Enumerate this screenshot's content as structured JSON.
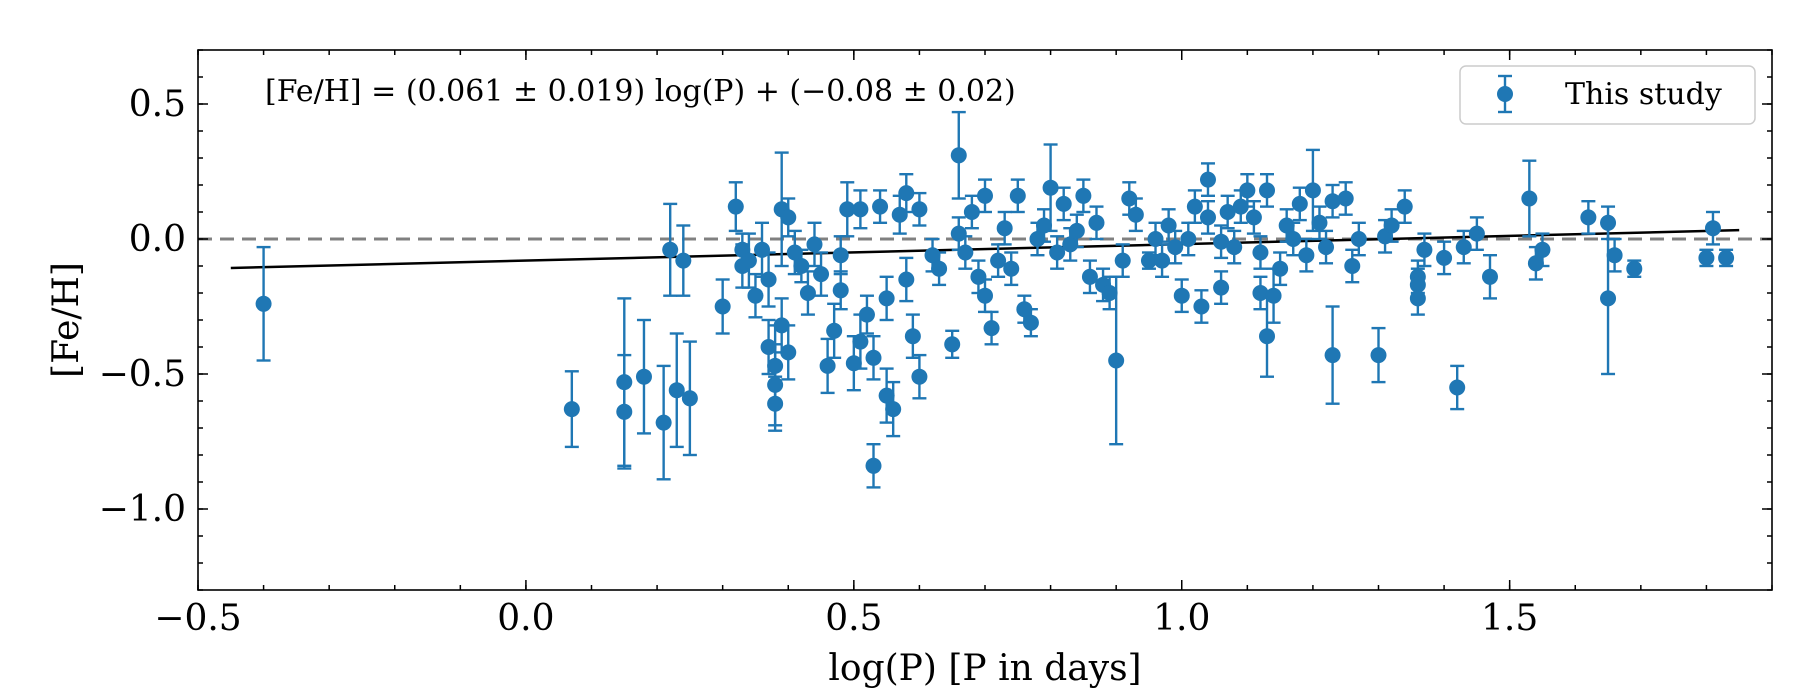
{
  "chart_data": {
    "type": "scatter",
    "title": "",
    "xlabel": "log(P) [P in days]",
    "ylabel": "[Fe/H]",
    "xlim": [
      -0.5,
      1.9
    ],
    "ylim": [
      -1.3,
      0.7
    ],
    "xticks": [
      -0.5,
      0.0,
      0.5,
      1.0,
      1.5
    ],
    "xtick_labels": [
      "−0.5",
      "0.0",
      "0.5",
      "1.0",
      "1.5"
    ],
    "yticks": [
      0.5,
      0.0,
      -0.5,
      -1.0
    ],
    "ytick_labels": [
      "0.5",
      "0.0",
      "−0.5",
      "−1.0"
    ],
    "grid": false,
    "annotation": "[Fe/H] = (0.061 ± 0.019) log(P) + (−0.08 ± 0.02)",
    "legend": {
      "label": "This study",
      "position": "top-right"
    },
    "fit_line": {
      "slope": 0.061,
      "intercept": -0.08,
      "x_start": -0.45,
      "x_end": 1.85,
      "color": "#000000"
    },
    "reference_line": {
      "y": 0.0,
      "style": "dashed",
      "color": "#808080"
    },
    "series": [
      {
        "name": "This study",
        "color": "#1f77b4",
        "points": [
          [
            -0.4,
            -0.24,
            0.21
          ],
          [
            0.07,
            -0.63,
            0.14
          ],
          [
            0.15,
            -0.53,
            0.31
          ],
          [
            0.15,
            -0.64,
            0.21
          ],
          [
            0.18,
            -0.51,
            0.21
          ],
          [
            0.21,
            -0.68,
            0.21
          ],
          [
            0.22,
            -0.04,
            0.17
          ],
          [
            0.23,
            -0.56,
            0.21
          ],
          [
            0.24,
            -0.08,
            0.13
          ],
          [
            0.25,
            -0.59,
            0.21
          ],
          [
            0.3,
            -0.25,
            0.1
          ],
          [
            0.32,
            0.12,
            0.09
          ],
          [
            0.33,
            -0.1,
            0.08
          ],
          [
            0.33,
            -0.04,
            0.06
          ],
          [
            0.34,
            -0.08,
            0.1
          ],
          [
            0.35,
            -0.21,
            0.08
          ],
          [
            0.36,
            -0.04,
            0.1
          ],
          [
            0.37,
            -0.15,
            0.1
          ],
          [
            0.37,
            -0.4,
            0.1
          ],
          [
            0.38,
            -0.47,
            0.15
          ],
          [
            0.38,
            -0.54,
            0.15
          ],
          [
            0.38,
            -0.61,
            0.1
          ],
          [
            0.39,
            0.11,
            0.21
          ],
          [
            0.39,
            -0.32,
            0.1
          ],
          [
            0.4,
            -0.42,
            0.1
          ],
          [
            0.4,
            0.08,
            0.07
          ],
          [
            0.41,
            -0.05,
            0.08
          ],
          [
            0.42,
            -0.1,
            0.06
          ],
          [
            0.43,
            -0.2,
            0.08
          ],
          [
            0.44,
            -0.02,
            0.08
          ],
          [
            0.45,
            -0.13,
            0.08
          ],
          [
            0.46,
            -0.47,
            0.1
          ],
          [
            0.47,
            -0.34,
            0.1
          ],
          [
            0.48,
            -0.19,
            0.07
          ],
          [
            0.48,
            -0.06,
            0.07
          ],
          [
            0.49,
            0.11,
            0.1
          ],
          [
            0.5,
            -0.46,
            0.1
          ],
          [
            0.51,
            -0.38,
            0.1
          ],
          [
            0.51,
            0.11,
            0.07
          ],
          [
            0.52,
            -0.28,
            0.07
          ],
          [
            0.53,
            -0.44,
            0.08
          ],
          [
            0.53,
            -0.84,
            0.08
          ],
          [
            0.54,
            0.12,
            0.06
          ],
          [
            0.55,
            -0.58,
            0.1
          ],
          [
            0.55,
            -0.22,
            0.08
          ],
          [
            0.56,
            -0.63,
            0.1
          ],
          [
            0.57,
            0.09,
            0.07
          ],
          [
            0.58,
            0.17,
            0.07
          ],
          [
            0.58,
            -0.15,
            0.08
          ],
          [
            0.59,
            -0.36,
            0.08
          ],
          [
            0.6,
            -0.51,
            0.08
          ],
          [
            0.6,
            0.11,
            0.06
          ],
          [
            0.62,
            -0.06,
            0.06
          ],
          [
            0.63,
            -0.11,
            0.06
          ],
          [
            0.65,
            -0.39,
            0.05
          ],
          [
            0.66,
            0.31,
            0.16
          ],
          [
            0.66,
            0.02,
            0.06
          ],
          [
            0.67,
            -0.05,
            0.06
          ],
          [
            0.68,
            0.1,
            0.06
          ],
          [
            0.69,
            -0.14,
            0.06
          ],
          [
            0.7,
            0.16,
            0.06
          ],
          [
            0.7,
            -0.21,
            0.06
          ],
          [
            0.71,
            -0.33,
            0.06
          ],
          [
            0.72,
            -0.08,
            0.06
          ],
          [
            0.73,
            0.04,
            0.06
          ],
          [
            0.74,
            -0.11,
            0.06
          ],
          [
            0.75,
            0.16,
            0.06
          ],
          [
            0.76,
            -0.26,
            0.05
          ],
          [
            0.77,
            -0.31,
            0.05
          ],
          [
            0.78,
            0.0,
            0.06
          ],
          [
            0.79,
            0.05,
            0.06
          ],
          [
            0.8,
            0.19,
            0.16
          ],
          [
            0.81,
            -0.05,
            0.06
          ],
          [
            0.82,
            0.13,
            0.06
          ],
          [
            0.83,
            -0.02,
            0.06
          ],
          [
            0.84,
            0.03,
            0.06
          ],
          [
            0.85,
            0.16,
            0.06
          ],
          [
            0.86,
            -0.14,
            0.06
          ],
          [
            0.87,
            0.06,
            0.06
          ],
          [
            0.88,
            -0.17,
            0.06
          ],
          [
            0.89,
            -0.2,
            0.06
          ],
          [
            0.9,
            -0.45,
            0.31
          ],
          [
            0.91,
            -0.08,
            0.06
          ],
          [
            0.92,
            0.15,
            0.06
          ],
          [
            0.93,
            0.09,
            0.06
          ],
          [
            0.95,
            -0.08,
            0.03
          ],
          [
            0.96,
            0.0,
            0.06
          ],
          [
            0.97,
            -0.08,
            0.06
          ],
          [
            0.98,
            0.05,
            0.06
          ],
          [
            0.99,
            -0.03,
            0.06
          ],
          [
            1.0,
            -0.21,
            0.06
          ],
          [
            1.01,
            0.0,
            0.06
          ],
          [
            1.02,
            0.12,
            0.06
          ],
          [
            1.03,
            -0.25,
            0.06
          ],
          [
            1.04,
            0.08,
            0.06
          ],
          [
            1.04,
            0.22,
            0.06
          ],
          [
            1.06,
            -0.18,
            0.06
          ],
          [
            1.06,
            -0.01,
            0.06
          ],
          [
            1.07,
            0.1,
            0.06
          ],
          [
            1.08,
            -0.03,
            0.06
          ],
          [
            1.09,
            0.12,
            0.06
          ],
          [
            1.1,
            0.18,
            0.06
          ],
          [
            1.11,
            0.08,
            0.06
          ],
          [
            1.12,
            -0.2,
            0.06
          ],
          [
            1.12,
            -0.05,
            0.06
          ],
          [
            1.13,
            0.18,
            0.06
          ],
          [
            1.13,
            -0.36,
            0.15
          ],
          [
            1.14,
            -0.21,
            0.1
          ],
          [
            1.15,
            -0.11,
            0.06
          ],
          [
            1.16,
            0.05,
            0.06
          ],
          [
            1.17,
            0.0,
            0.06
          ],
          [
            1.18,
            0.13,
            0.06
          ],
          [
            1.19,
            -0.06,
            0.06
          ],
          [
            1.2,
            0.18,
            0.15
          ],
          [
            1.21,
            0.06,
            0.06
          ],
          [
            1.22,
            -0.03,
            0.06
          ],
          [
            1.23,
            -0.43,
            0.18
          ],
          [
            1.23,
            0.14,
            0.06
          ],
          [
            1.25,
            0.15,
            0.06
          ],
          [
            1.26,
            -0.1,
            0.06
          ],
          [
            1.27,
            0.0,
            0.06
          ],
          [
            1.3,
            -0.43,
            0.1
          ],
          [
            1.31,
            0.01,
            0.06
          ],
          [
            1.32,
            0.05,
            0.06
          ],
          [
            1.34,
            0.12,
            0.06
          ],
          [
            1.36,
            -0.14,
            0.06
          ],
          [
            1.36,
            -0.17,
            0.06
          ],
          [
            1.36,
            -0.22,
            0.06
          ],
          [
            1.37,
            -0.04,
            0.06
          ],
          [
            1.4,
            -0.07,
            0.06
          ],
          [
            1.42,
            -0.55,
            0.08
          ],
          [
            1.43,
            -0.03,
            0.06
          ],
          [
            1.45,
            0.02,
            0.06
          ],
          [
            1.47,
            -0.14,
            0.08
          ],
          [
            1.53,
            0.15,
            0.14
          ],
          [
            1.54,
            -0.09,
            0.06
          ],
          [
            1.55,
            -0.04,
            0.06
          ],
          [
            1.62,
            0.08,
            0.06
          ],
          [
            1.65,
            0.06,
            0.06
          ],
          [
            1.65,
            -0.22,
            0.28
          ],
          [
            1.66,
            -0.06,
            0.06
          ],
          [
            1.69,
            -0.11,
            0.03
          ],
          [
            1.8,
            -0.07,
            0.03
          ],
          [
            1.81,
            0.04,
            0.06
          ],
          [
            1.83,
            -0.07,
            0.03
          ]
        ]
      }
    ]
  }
}
